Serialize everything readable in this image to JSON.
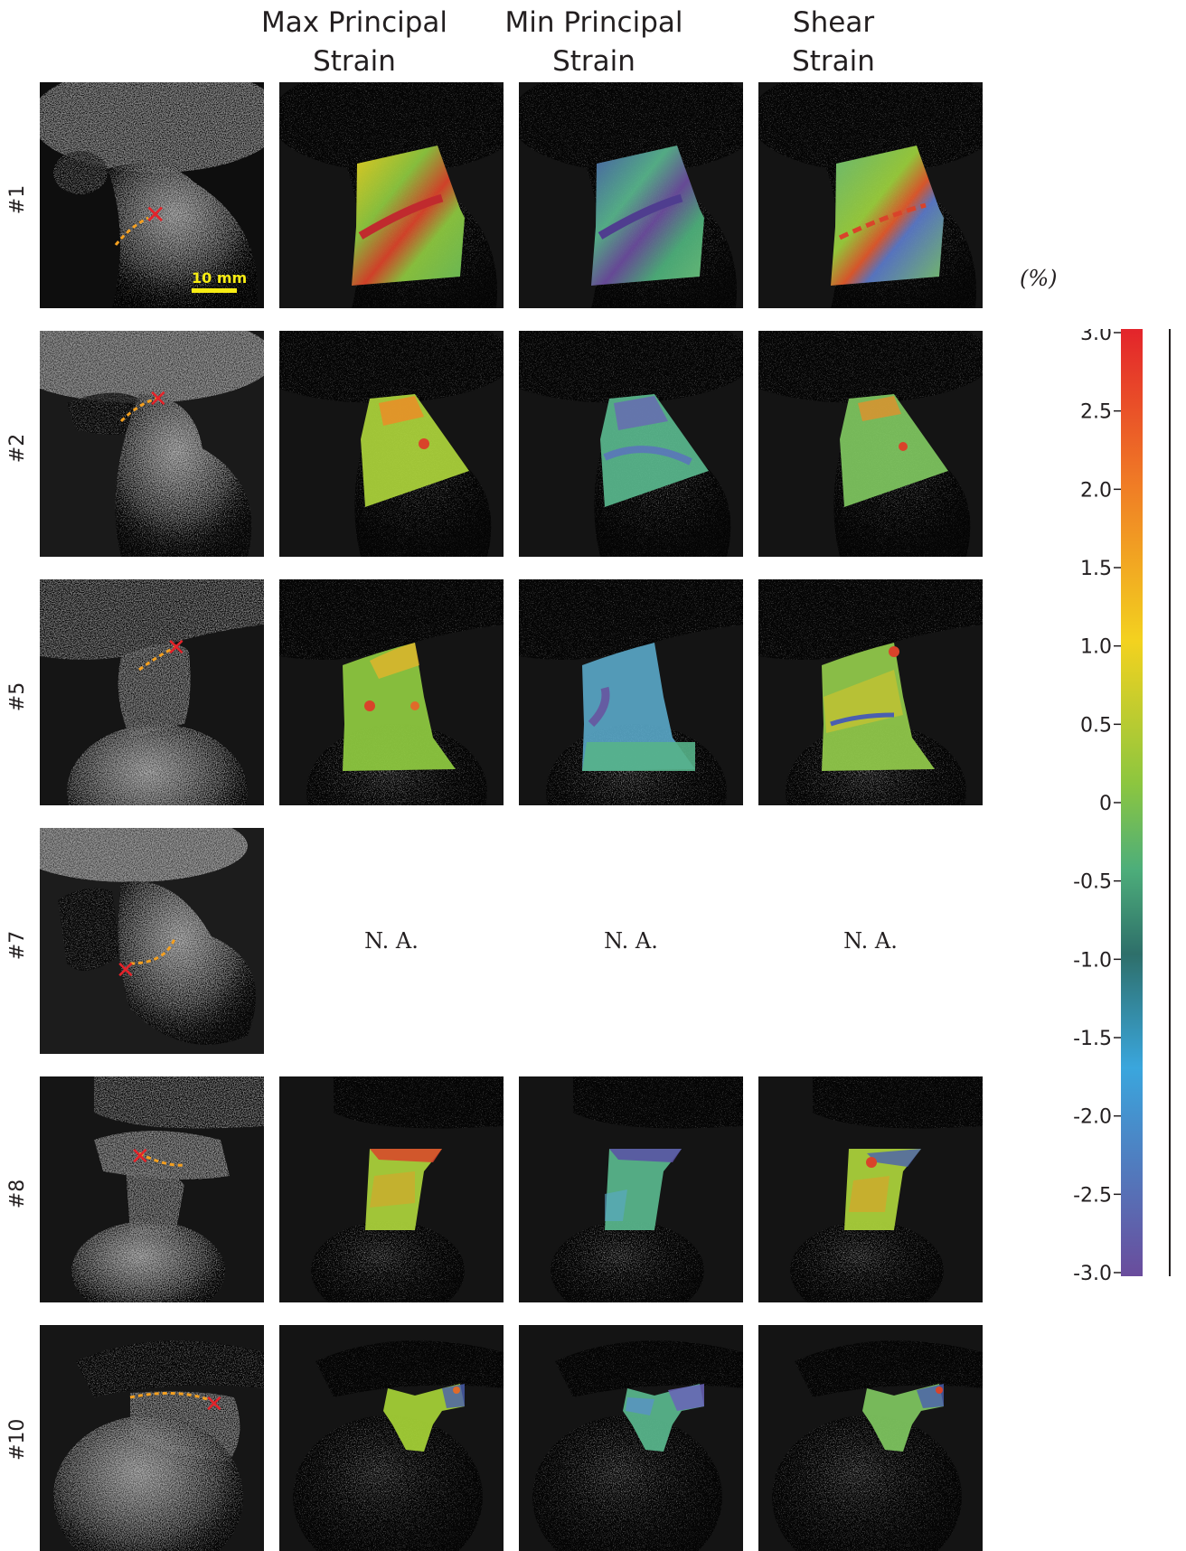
{
  "figure": {
    "columns": [
      {
        "line1": "Max Principal",
        "line2": "Strain"
      },
      {
        "line1": "Min Principal",
        "line2": "Strain"
      },
      {
        "line1": "Shear",
        "line2": "Strain"
      }
    ],
    "rows": [
      {
        "label": "#1"
      },
      {
        "label": "#2"
      },
      {
        "label": "#5"
      },
      {
        "label": "#7"
      },
      {
        "label": "#8"
      },
      {
        "label": "#10"
      }
    ],
    "scale_bar_label": "10 mm",
    "na_text": "N. A.",
    "marker_glyph": "✕",
    "colorbar": {
      "unit": "(%)",
      "ticks": [
        "3.0",
        "2.5",
        "2.0",
        "1.5",
        "1.0",
        "0.5",
        "0",
        "-0.5",
        "-1.0",
        "-1.5",
        "-2.0",
        "-2.5",
        "-3.0"
      ],
      "colors": [
        "#e3242b",
        "#f07f25",
        "#f3d21f",
        "#8cc63f",
        "#4dae7a",
        "#2e6f6a",
        "#3aa6dd",
        "#6a4c9c"
      ]
    },
    "colors": {
      "crack_line": "#f4a020",
      "marker": "#e4232a",
      "scale_bar": "#f7ec13"
    }
  }
}
